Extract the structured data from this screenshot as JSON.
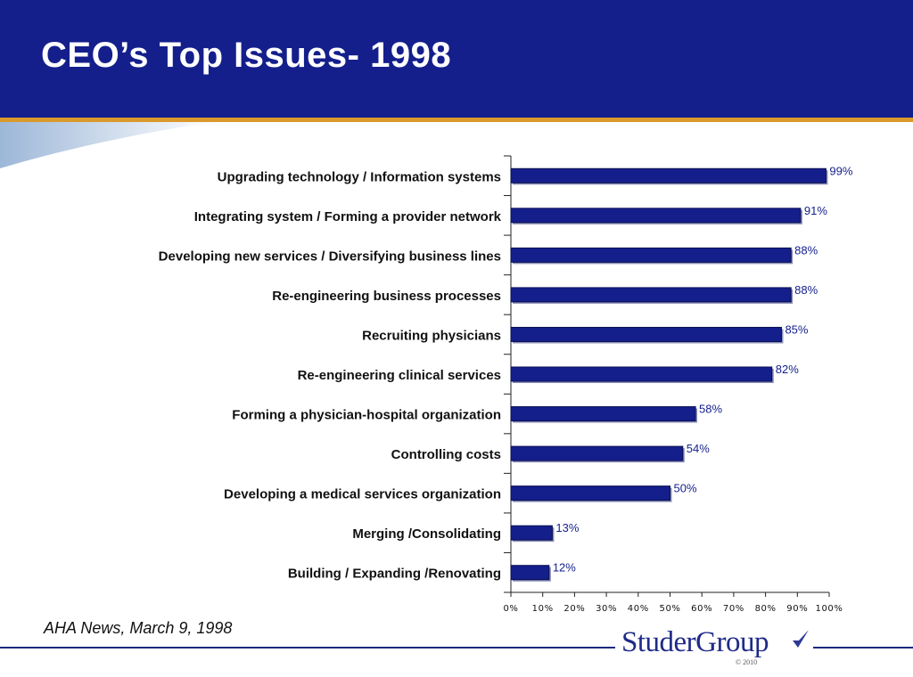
{
  "title": "CEO’s Top Issues- 1998",
  "source": "AHA News, March 9, 1998",
  "logo": {
    "text": "StuderGroup",
    "copyright": "© 2010"
  },
  "colors": {
    "header": "#141f8c",
    "bar_fill": "#141f8c",
    "bar_shadow": "#8a8fb8",
    "accent_line": "#d99a2b",
    "label_color": "#141f8c"
  },
  "chart_data": {
    "type": "bar",
    "orientation": "horizontal",
    "categories": [
      "Upgrading technology / Information systems",
      "Integrating  system / Forming  a provider network",
      "Developing new services / Diversifying business lines",
      "Re-engineering business processes",
      "Recruiting physicians",
      "Re-engineering clinical services",
      "Forming a physician-hospital organization",
      "Controlling costs",
      "Developing a medical services organization",
      "Merging /Consolidating",
      "Building / Expanding /Renovating"
    ],
    "values": [
      99,
      91,
      88,
      88,
      85,
      82,
      58,
      54,
      50,
      13,
      12
    ],
    "value_labels": [
      "99%",
      "91%",
      "88%",
      "88%",
      "85%",
      "82%",
      "58%",
      "54%",
      "50%",
      "13%",
      "12%"
    ],
    "xlim": [
      0,
      100
    ],
    "xticks": [
      "0%",
      "10%",
      "20%",
      "30%",
      "40%",
      "50%",
      "60%",
      "70%",
      "80%",
      "90%",
      "100%"
    ],
    "grid": false,
    "legend": "none"
  }
}
